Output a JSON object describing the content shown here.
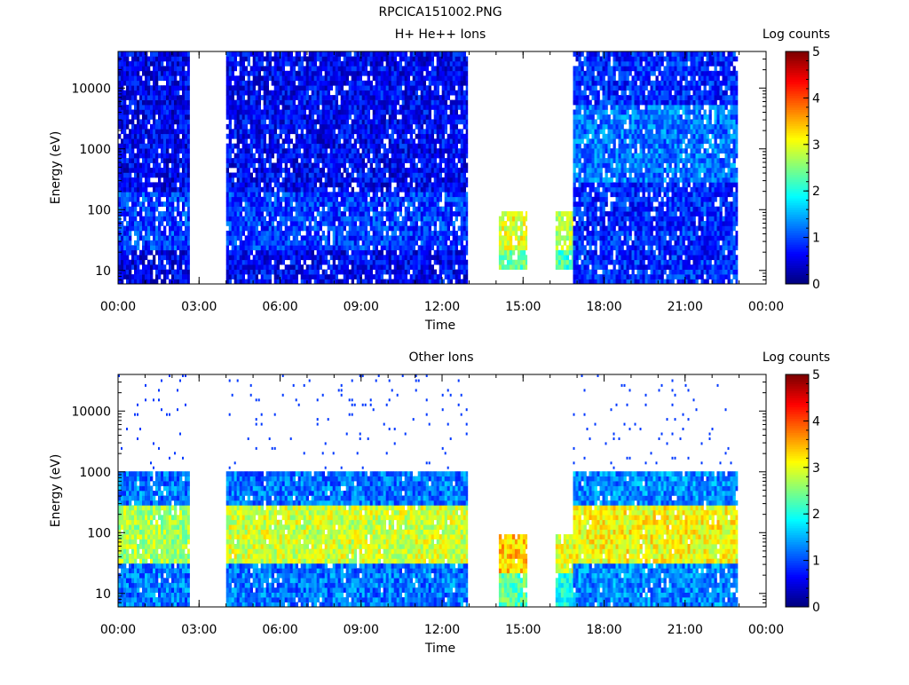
{
  "figure_title": "RPCICA151002.PNG",
  "chart_data": [
    {
      "type": "heatmap",
      "title": "H+ He++ Ions",
      "xlabel": "Time",
      "ylabel": "Energy (eV)",
      "x_ticks": [
        "00:00",
        "03:00",
        "06:00",
        "09:00",
        "12:00",
        "15:00",
        "18:00",
        "21:00",
        "00:00"
      ],
      "xlim_hours": [
        0,
        24
      ],
      "y_ticks": [
        "10",
        "100",
        "1000",
        "10000"
      ],
      "ylim": [
        6,
        40000
      ],
      "y_scale": "log",
      "colorbar": {
        "label": "Log counts",
        "ticks": [
          "0",
          "1",
          "2",
          "3",
          "4",
          "5"
        ],
        "range": [
          0,
          5
        ]
      },
      "data_gaps_hours": [
        [
          2.65,
          4.0
        ],
        [
          12.95,
          14.1
        ],
        [
          15.15,
          16.2
        ],
        [
          22.95,
          24.0
        ]
      ],
      "segments": [
        {
          "start_h": 0.0,
          "end_h": 2.65,
          "e_min": 6,
          "e_max": 40000,
          "base_level": 0.55,
          "core_level": 0.9,
          "core_emin": 20,
          "core_emax": 200
        },
        {
          "start_h": 4.0,
          "end_h": 12.95,
          "e_min": 6,
          "e_max": 40000,
          "base_level": 0.6,
          "core_level": 0.9,
          "core_emin": 20,
          "core_emax": 200
        },
        {
          "start_h": 14.1,
          "end_h": 15.15,
          "e_min": 10,
          "e_max": 100,
          "base_level": 2.4,
          "core_level": 3.0,
          "core_emin": 20,
          "core_emax": 100
        },
        {
          "start_h": 16.2,
          "end_h": 16.85,
          "e_min": 10,
          "e_max": 100,
          "base_level": 2.2,
          "core_level": 2.8,
          "core_emin": 20,
          "core_emax": 100
        },
        {
          "start_h": 16.85,
          "end_h": 22.95,
          "e_min": 6,
          "e_max": 40000,
          "base_level": 0.8,
          "core_level": 1.2,
          "core_emin": 300,
          "core_emax": 5000
        }
      ]
    },
    {
      "type": "heatmap",
      "title": "Other Ions",
      "xlabel": "Time",
      "ylabel": "Energy (eV)",
      "x_ticks": [
        "00:00",
        "03:00",
        "06:00",
        "09:00",
        "12:00",
        "15:00",
        "18:00",
        "21:00",
        "00:00"
      ],
      "xlim_hours": [
        0,
        24
      ],
      "y_ticks": [
        "10",
        "100",
        "1000",
        "10000"
      ],
      "ylim": [
        6,
        40000
      ],
      "y_scale": "log",
      "colorbar": {
        "label": "Log counts",
        "ticks": [
          "0",
          "1",
          "2",
          "3",
          "4",
          "5"
        ],
        "range": [
          0,
          5
        ]
      },
      "data_gaps_hours": [
        [
          2.65,
          4.0
        ],
        [
          12.95,
          14.1
        ],
        [
          15.15,
          16.2
        ],
        [
          22.95,
          24.0
        ]
      ],
      "segments": [
        {
          "start_h": 0.0,
          "end_h": 2.65,
          "e_min": 6,
          "e_max": 1000,
          "base_level": 1.2,
          "core_level": 2.7,
          "core_emin": 30,
          "core_emax": 300
        },
        {
          "start_h": 4.0,
          "end_h": 12.95,
          "e_min": 6,
          "e_max": 1000,
          "base_level": 1.2,
          "core_level": 2.9,
          "core_emin": 30,
          "core_emax": 300
        },
        {
          "start_h": 14.1,
          "end_h": 15.15,
          "e_min": 6,
          "e_max": 100,
          "base_level": 2.3,
          "core_level": 3.4,
          "core_emin": 20,
          "core_emax": 100
        },
        {
          "start_h": 16.2,
          "end_h": 16.85,
          "e_min": 6,
          "e_max": 100,
          "base_level": 2.0,
          "core_level": 3.0,
          "core_emin": 20,
          "core_emax": 100
        },
        {
          "start_h": 16.85,
          "end_h": 22.95,
          "e_min": 6,
          "e_max": 1000,
          "base_level": 1.3,
          "core_level": 3.1,
          "core_emin": 30,
          "core_emax": 300
        }
      ]
    }
  ]
}
